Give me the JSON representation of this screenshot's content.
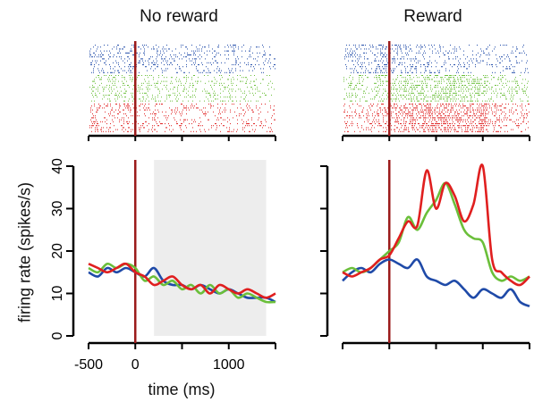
{
  "panels": {
    "left_title": "No reward",
    "right_title": "Reward"
  },
  "y_axis_label": "firing rate (spikes/s)",
  "x_axis_label": "time (ms)",
  "colors": {
    "blue": "#1f4aa8",
    "green": "#6bbf3a",
    "red": "#e01f1f",
    "event_line": "#9b1b1b",
    "shade": "#ededed"
  },
  "chart_data": [
    {
      "type": "line",
      "panel": "No reward",
      "xlabel": "time (ms)",
      "ylabel": "firing rate (spikes/s)",
      "xlim": [
        -500,
        1500
      ],
      "ylim": [
        0,
        40
      ],
      "x_ticks": [
        -500,
        0,
        1000
      ],
      "y_ticks": [
        0,
        10,
        20,
        30,
        40
      ],
      "event_line_x": 0,
      "shaded_region": [
        200,
        1400
      ],
      "x": [
        -500,
        -400,
        -300,
        -200,
        -100,
        0,
        100,
        200,
        300,
        400,
        500,
        600,
        700,
        800,
        900,
        1000,
        1100,
        1200,
        1300,
        1400,
        1500
      ],
      "series": [
        {
          "color": "blue",
          "values": [
            15,
            14,
            16,
            15,
            16,
            15,
            14,
            16,
            13,
            12,
            12,
            11,
            12,
            11,
            10,
            11,
            10,
            9,
            9,
            9,
            8
          ]
        },
        {
          "color": "green",
          "values": [
            16,
            15,
            17,
            16,
            17,
            16,
            13,
            14,
            12,
            13,
            11,
            12,
            10,
            12,
            10,
            11,
            9,
            10,
            9,
            8,
            8
          ]
        },
        {
          "color": "red",
          "values": [
            17,
            16,
            15,
            16,
            17,
            15,
            14,
            12,
            13,
            14,
            12,
            11,
            12,
            10,
            12,
            11,
            10,
            11,
            10,
            9,
            10
          ]
        }
      ]
    },
    {
      "type": "line",
      "panel": "Reward",
      "xlabel": "",
      "ylabel": "",
      "xlim": [
        -500,
        1500
      ],
      "ylim": [
        0,
        40
      ],
      "y_ticks": [
        0,
        10,
        20,
        30,
        40
      ],
      "event_line_x": 0,
      "x": [
        -500,
        -400,
        -300,
        -200,
        -100,
        0,
        100,
        200,
        300,
        400,
        500,
        600,
        700,
        800,
        900,
        1000,
        1100,
        1200,
        1300,
        1400,
        1500
      ],
      "series": [
        {
          "color": "blue",
          "values": [
            13,
            15,
            16,
            15,
            17,
            18,
            17,
            16,
            18,
            14,
            13,
            12,
            13,
            11,
            9,
            11,
            10,
            9,
            11,
            8,
            7
          ]
        },
        {
          "color": "green",
          "values": [
            15,
            16,
            15,
            16,
            18,
            20,
            22,
            28,
            25,
            29,
            32,
            36,
            31,
            25,
            23,
            22,
            15,
            13,
            14,
            13,
            14
          ]
        },
        {
          "color": "red",
          "values": [
            15,
            14,
            15,
            16,
            18,
            19,
            23,
            27,
            26,
            39,
            30,
            36,
            33,
            27,
            31,
            40,
            18,
            15,
            13,
            12,
            14
          ]
        }
      ]
    }
  ]
}
